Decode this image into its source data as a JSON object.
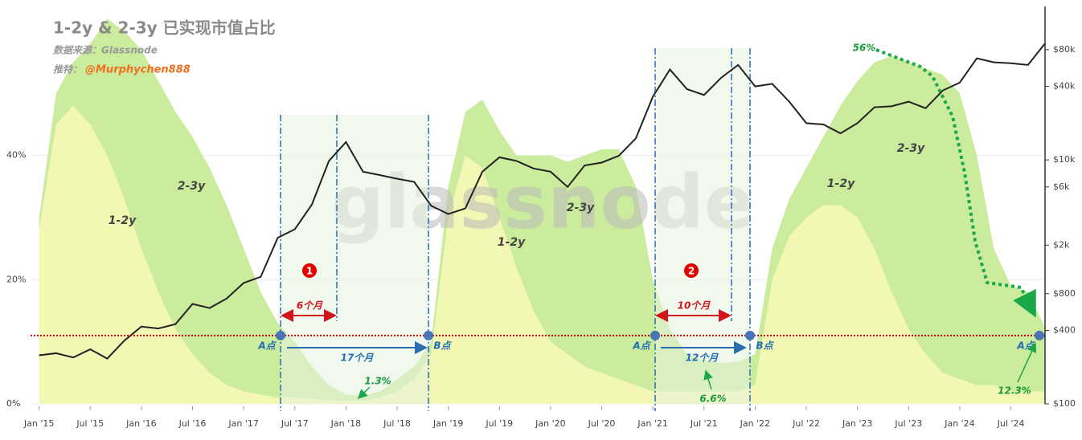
{
  "chart_data": {
    "type": "stacked-area",
    "title": "1-2y & 2-3y 已实现市值占比",
    "source": "数据来源：Glassnode",
    "twitter_prefix": "推特：",
    "twitter_handle": "@Murphychen888",
    "x": [
      "2015-01",
      "2015-03",
      "2015-05",
      "2015-07",
      "2015-09",
      "2015-11",
      "2016-01",
      "2016-03",
      "2016-05",
      "2016-07",
      "2016-09",
      "2016-11",
      "2017-01",
      "2017-03",
      "2017-05",
      "2017-07",
      "2017-09",
      "2017-11",
      "2018-01",
      "2018-03",
      "2018-05",
      "2018-07",
      "2018-09",
      "2018-11",
      "2019-01",
      "2019-03",
      "2019-05",
      "2019-07",
      "2019-09",
      "2019-11",
      "2020-01",
      "2020-03",
      "2020-05",
      "2020-07",
      "2020-09",
      "2020-11",
      "2021-01",
      "2021-03",
      "2021-05",
      "2021-07",
      "2021-09",
      "2021-11",
      "2022-01",
      "2022-03",
      "2022-05",
      "2022-07",
      "2022-09",
      "2022-11",
      "2023-01",
      "2023-03",
      "2023-05",
      "2023-07",
      "2023-09",
      "2023-11",
      "2024-01",
      "2024-03",
      "2024-05",
      "2024-07",
      "2024-09",
      "2024-11"
    ],
    "series": [
      {
        "name": "1-2y",
        "color": "#f3f7b4",
        "values": [
          28,
          45,
          48,
          45,
          40,
          33,
          25,
          18,
          12,
          8,
          5,
          3,
          2,
          1.5,
          1,
          1,
          0.8,
          0.6,
          0.5,
          0.5,
          1,
          2,
          4,
          8,
          30,
          40,
          38,
          30,
          22,
          15,
          10,
          8,
          6,
          5,
          4,
          3,
          2,
          2,
          2,
          2,
          2,
          2,
          3,
          20,
          27,
          30,
          32,
          32,
          30,
          25,
          18,
          12,
          8,
          5,
          4,
          3,
          3,
          2,
          2,
          2
        ]
      },
      {
        "name": "2-3y",
        "color": "#cbeb9d",
        "values": [
          2,
          5,
          7,
          13,
          22,
          27,
          32,
          34,
          35,
          35,
          33,
          29,
          23,
          16.5,
          12,
          9,
          5.2,
          2.4,
          1,
          0.8,
          1,
          2,
          2,
          2,
          5,
          7,
          11,
          14,
          18,
          25,
          30,
          31,
          34,
          36,
          37,
          32,
          18,
          10,
          6,
          5,
          4.6,
          4.8,
          5,
          5,
          6,
          8,
          11,
          16,
          22,
          30,
          38,
          43,
          46,
          48,
          46,
          37,
          22,
          17,
          16,
          10.3
        ]
      }
    ],
    "price": {
      "axis": "y2",
      "color": "#222222",
      "values": [
        250,
        260,
        240,
        280,
        235,
        330,
        430,
        415,
        450,
        660,
        610,
        730,
        980,
        1100,
        2300,
        2700,
        4300,
        9800,
        14000,
        8000,
        7500,
        7000,
        6600,
        4200,
        3600,
        4000,
        8000,
        10500,
        9800,
        8500,
        8000,
        6000,
        9000,
        9500,
        10800,
        15000,
        33000,
        55000,
        38000,
        34000,
        47000,
        60000,
        40000,
        42000,
        30000,
        20000,
        19500,
        16500,
        20000,
        27000,
        27500,
        30000,
        26500,
        37000,
        43000,
        68000,
        63000,
        62000,
        60000,
        90000
      ]
    },
    "threshold": 11,
    "threshold_color": "#c00000",
    "xlim": [
      "2014-12",
      "2024-11"
    ],
    "xticks": [
      {
        "value": "2015-01",
        "label": "Jan '15"
      },
      {
        "value": "2015-07",
        "label": "Jul '15"
      },
      {
        "value": "2016-01",
        "label": "Jan '16"
      },
      {
        "value": "2016-07",
        "label": "Jul '16"
      },
      {
        "value": "2017-01",
        "label": "Jan '17"
      },
      {
        "value": "2017-07",
        "label": "Jul '17"
      },
      {
        "value": "2018-01",
        "label": "Jan '18"
      },
      {
        "value": "2018-07",
        "label": "Jul '18"
      },
      {
        "value": "2019-01",
        "label": "Jan '19"
      },
      {
        "value": "2019-07",
        "label": "Jul '19"
      },
      {
        "value": "2020-01",
        "label": "Jan '20"
      },
      {
        "value": "2020-07",
        "label": "Jul '20"
      },
      {
        "value": "2021-01",
        "label": "Jan '21"
      },
      {
        "value": "2021-07",
        "label": "Jul '21"
      },
      {
        "value": "2022-01",
        "label": "Jan '22"
      },
      {
        "value": "2022-07",
        "label": "Jul '22"
      },
      {
        "value": "2023-01",
        "label": "Jan '23"
      },
      {
        "value": "2023-07",
        "label": "Jul '23"
      },
      {
        "value": "2024-01",
        "label": "Jan '24"
      },
      {
        "value": "2024-07",
        "label": "Jul '24"
      }
    ],
    "ylim": [
      0,
      64
    ],
    "yticks": [
      {
        "value": 0,
        "label": "0%"
      },
      {
        "value": 20,
        "label": "20%"
      },
      {
        "value": 40,
        "label": "40%"
      }
    ],
    "y2lim": [
      100,
      181000
    ],
    "y2log": true,
    "y2ticks": [
      {
        "value": 100,
        "label": "$100"
      },
      {
        "value": 400,
        "label": "$400"
      },
      {
        "value": 800,
        "label": "$800"
      },
      {
        "value": 2000,
        "label": "$2k"
      },
      {
        "value": 6000,
        "label": "$6k"
      },
      {
        "value": 10000,
        "label": "$10k"
      },
      {
        "value": 40000,
        "label": "$40k"
      },
      {
        "value": 80000,
        "label": "$80k"
      }
    ],
    "grid": true,
    "annotations": {
      "marker_1": "1",
      "marker_2": "2",
      "span_1a": "6个月",
      "span_1b": "17个月",
      "span_2a": "10个月",
      "span_2b": "12个月",
      "point_a": "A点",
      "point_b": "B点",
      "low_1": "1.3%",
      "low_2": "6.6%",
      "end": "12.3%",
      "peak": "56%",
      "watermark": "glassnode"
    }
  }
}
